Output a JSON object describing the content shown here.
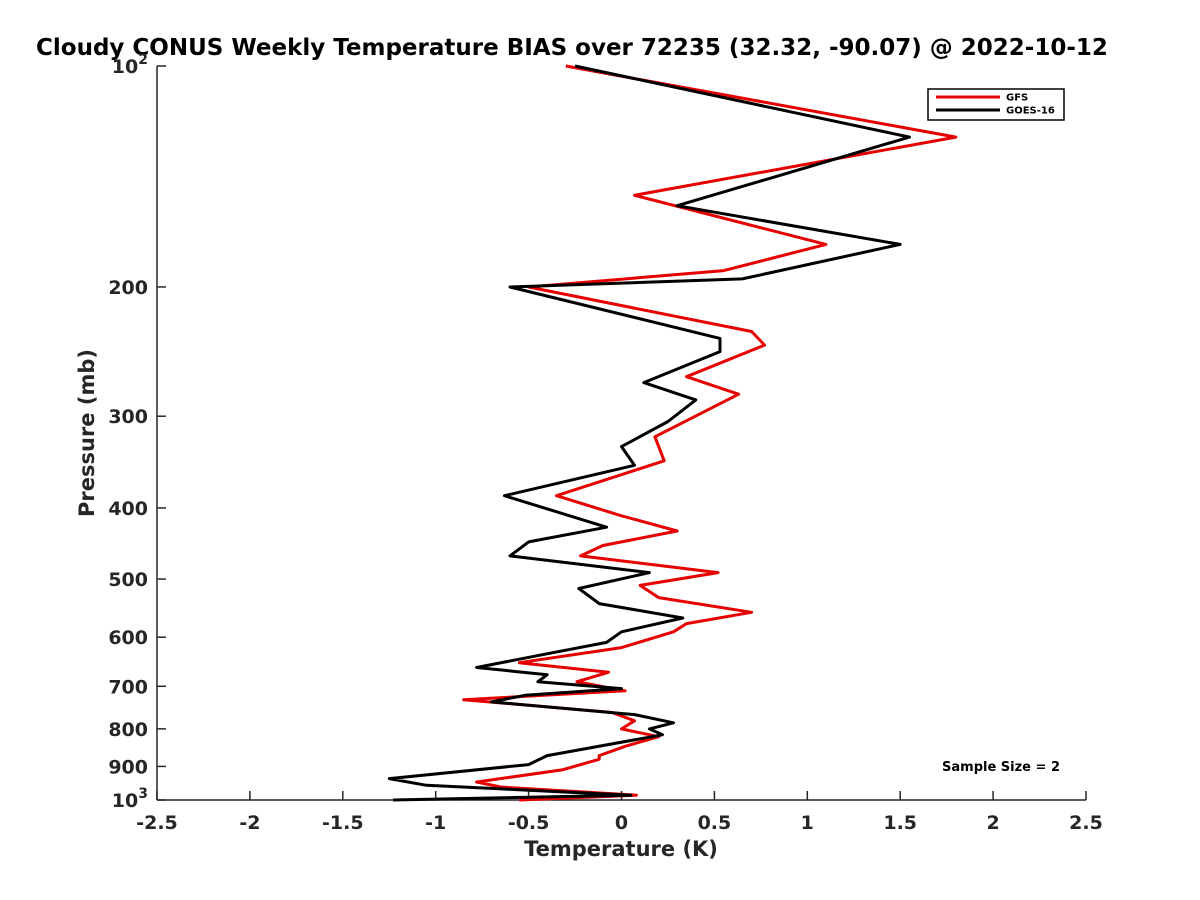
{
  "chart_data": {
    "type": "line",
    "title": "Cloudy CONUS Weekly Temperature BIAS over 72235 (32.32, -90.07) @ 2022-10-12",
    "xlabel": "Temperature (K)",
    "ylabel": "Pressure (mb)",
    "xlim": [
      -2.5,
      2.5
    ],
    "ylim": [
      100,
      1000
    ],
    "yscale": "log",
    "y_reversed": true,
    "x_ticks": [
      -2.5,
      -2,
      -1.5,
      -1,
      -0.5,
      0,
      0.5,
      1,
      1.5,
      2,
      2.5
    ],
    "x_tick_labels": [
      "-2.5",
      "-2",
      "-1.5",
      "-1",
      "-0.5",
      "0",
      "0.5",
      "1",
      "1.5",
      "2",
      "2.5"
    ],
    "y_ticks": [
      100,
      200,
      300,
      400,
      500,
      600,
      700,
      800,
      900,
      1000
    ],
    "y_tick_labels": [
      {
        "base": "10",
        "exp": "2"
      },
      {
        "base": "200",
        "exp": ""
      },
      {
        "base": "300",
        "exp": ""
      },
      {
        "base": "400",
        "exp": ""
      },
      {
        "base": "500",
        "exp": ""
      },
      {
        "base": "600",
        "exp": ""
      },
      {
        "base": "700",
        "exp": ""
      },
      {
        "base": "800",
        "exp": ""
      },
      {
        "base": "900",
        "exp": ""
      },
      {
        "base": "10",
        "exp": "3"
      }
    ],
    "legend_position": "top-right",
    "annotation": "Sample Size = 2",
    "series": [
      {
        "name": "GFS",
        "color": "#e60000",
        "points": [
          [
            -0.3,
            100
          ],
          [
            1.8,
            125
          ],
          [
            0.07,
            150
          ],
          [
            1.1,
            175
          ],
          [
            0.55,
            190
          ],
          [
            -0.5,
            200
          ],
          [
            0.7,
            230
          ],
          [
            0.77,
            240
          ],
          [
            0.35,
            265
          ],
          [
            0.63,
            280
          ],
          [
            0.18,
            320
          ],
          [
            0.23,
            345
          ],
          [
            -0.35,
            385
          ],
          [
            0.0,
            410
          ],
          [
            0.3,
            430
          ],
          [
            -0.1,
            450
          ],
          [
            -0.22,
            465
          ],
          [
            0.52,
            490
          ],
          [
            0.1,
            510
          ],
          [
            0.2,
            530
          ],
          [
            0.7,
            555
          ],
          [
            0.35,
            575
          ],
          [
            0.28,
            590
          ],
          [
            0.0,
            620
          ],
          [
            -0.55,
            650
          ],
          [
            -0.07,
            670
          ],
          [
            -0.24,
            690
          ],
          [
            0.02,
            710
          ],
          [
            -0.85,
            730
          ],
          [
            -0.05,
            760
          ],
          [
            0.07,
            780
          ],
          [
            0.0,
            800
          ],
          [
            0.2,
            820
          ],
          [
            0.02,
            845
          ],
          [
            -0.12,
            870
          ],
          [
            -0.12,
            880
          ],
          [
            -0.32,
            910
          ],
          [
            -0.78,
            945
          ],
          [
            -0.65,
            960
          ],
          [
            0.08,
            985
          ],
          [
            -0.55,
            1000
          ]
        ]
      },
      {
        "name": "GOES-16",
        "color": "#000000",
        "points": [
          [
            -0.25,
            100
          ],
          [
            1.55,
            125
          ],
          [
            0.3,
            155
          ],
          [
            1.5,
            175
          ],
          [
            0.65,
            195
          ],
          [
            -0.6,
            200
          ],
          [
            0.53,
            235
          ],
          [
            0.53,
            245
          ],
          [
            0.12,
            270
          ],
          [
            0.4,
            285
          ],
          [
            0.25,
            305
          ],
          [
            0.0,
            330
          ],
          [
            0.07,
            350
          ],
          [
            -0.63,
            385
          ],
          [
            -0.08,
            425
          ],
          [
            -0.5,
            445
          ],
          [
            -0.6,
            465
          ],
          [
            0.15,
            490
          ],
          [
            -0.23,
            515
          ],
          [
            -0.12,
            540
          ],
          [
            0.33,
            565
          ],
          [
            0.0,
            590
          ],
          [
            -0.08,
            610
          ],
          [
            -0.37,
            630
          ],
          [
            -0.78,
            660
          ],
          [
            -0.4,
            675
          ],
          [
            -0.45,
            690
          ],
          [
            0.0,
            705
          ],
          [
            -0.52,
            720
          ],
          [
            -0.7,
            735
          ],
          [
            0.07,
            765
          ],
          [
            0.28,
            785
          ],
          [
            0.15,
            800
          ],
          [
            0.22,
            815
          ],
          [
            -0.4,
            870
          ],
          [
            -0.5,
            895
          ],
          [
            -1.25,
            935
          ],
          [
            -1.05,
            955
          ],
          [
            0.05,
            985
          ],
          [
            -1.23,
            1000
          ]
        ]
      }
    ]
  }
}
